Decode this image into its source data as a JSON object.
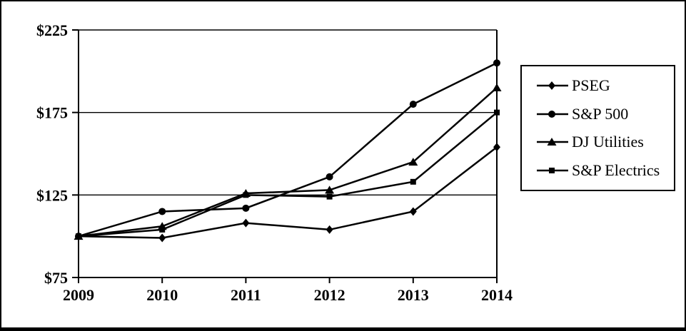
{
  "figure": {
    "background": "#ffffff",
    "line_color": "#000000",
    "border_color": "#000000"
  },
  "legend": {
    "position": "right",
    "items": [
      {
        "label": "PSEG",
        "marker": "diamond"
      },
      {
        "label": "S&P 500",
        "marker": "circle"
      },
      {
        "label": "DJ Utilities",
        "marker": "triangle"
      },
      {
        "label": "S&P Electrics",
        "marker": "square"
      }
    ]
  },
  "chart_data": {
    "type": "line",
    "title": "",
    "xlabel": "",
    "ylabel": "",
    "categories": [
      "2009",
      "2010",
      "2011",
      "2012",
      "2013",
      "2014"
    ],
    "series": [
      {
        "name": "PSEG",
        "marker": "diamond",
        "values": [
          100,
          99,
          108,
          104,
          115,
          154
        ]
      },
      {
        "name": "S&P 500",
        "marker": "circle",
        "values": [
          100,
          115,
          117,
          136,
          180,
          205
        ]
      },
      {
        "name": "DJ Utilities",
        "marker": "triangle",
        "values": [
          100,
          106,
          126,
          128,
          145,
          190
        ]
      },
      {
        "name": "S&P Electrics",
        "marker": "square",
        "values": [
          100,
          104,
          125,
          124,
          133,
          175
        ]
      }
    ],
    "y_ticks": [
      {
        "label": "$225",
        "value": 225
      },
      {
        "label": "$175",
        "value": 175
      },
      {
        "label": "$125",
        "value": 125
      },
      {
        "label": "$75",
        "value": 75
      }
    ],
    "ylim": [
      75,
      225
    ],
    "gridlines": [
      225,
      175,
      125
    ],
    "grid": "horizontal",
    "legend_position": "right",
    "series_color": "#000000"
  }
}
